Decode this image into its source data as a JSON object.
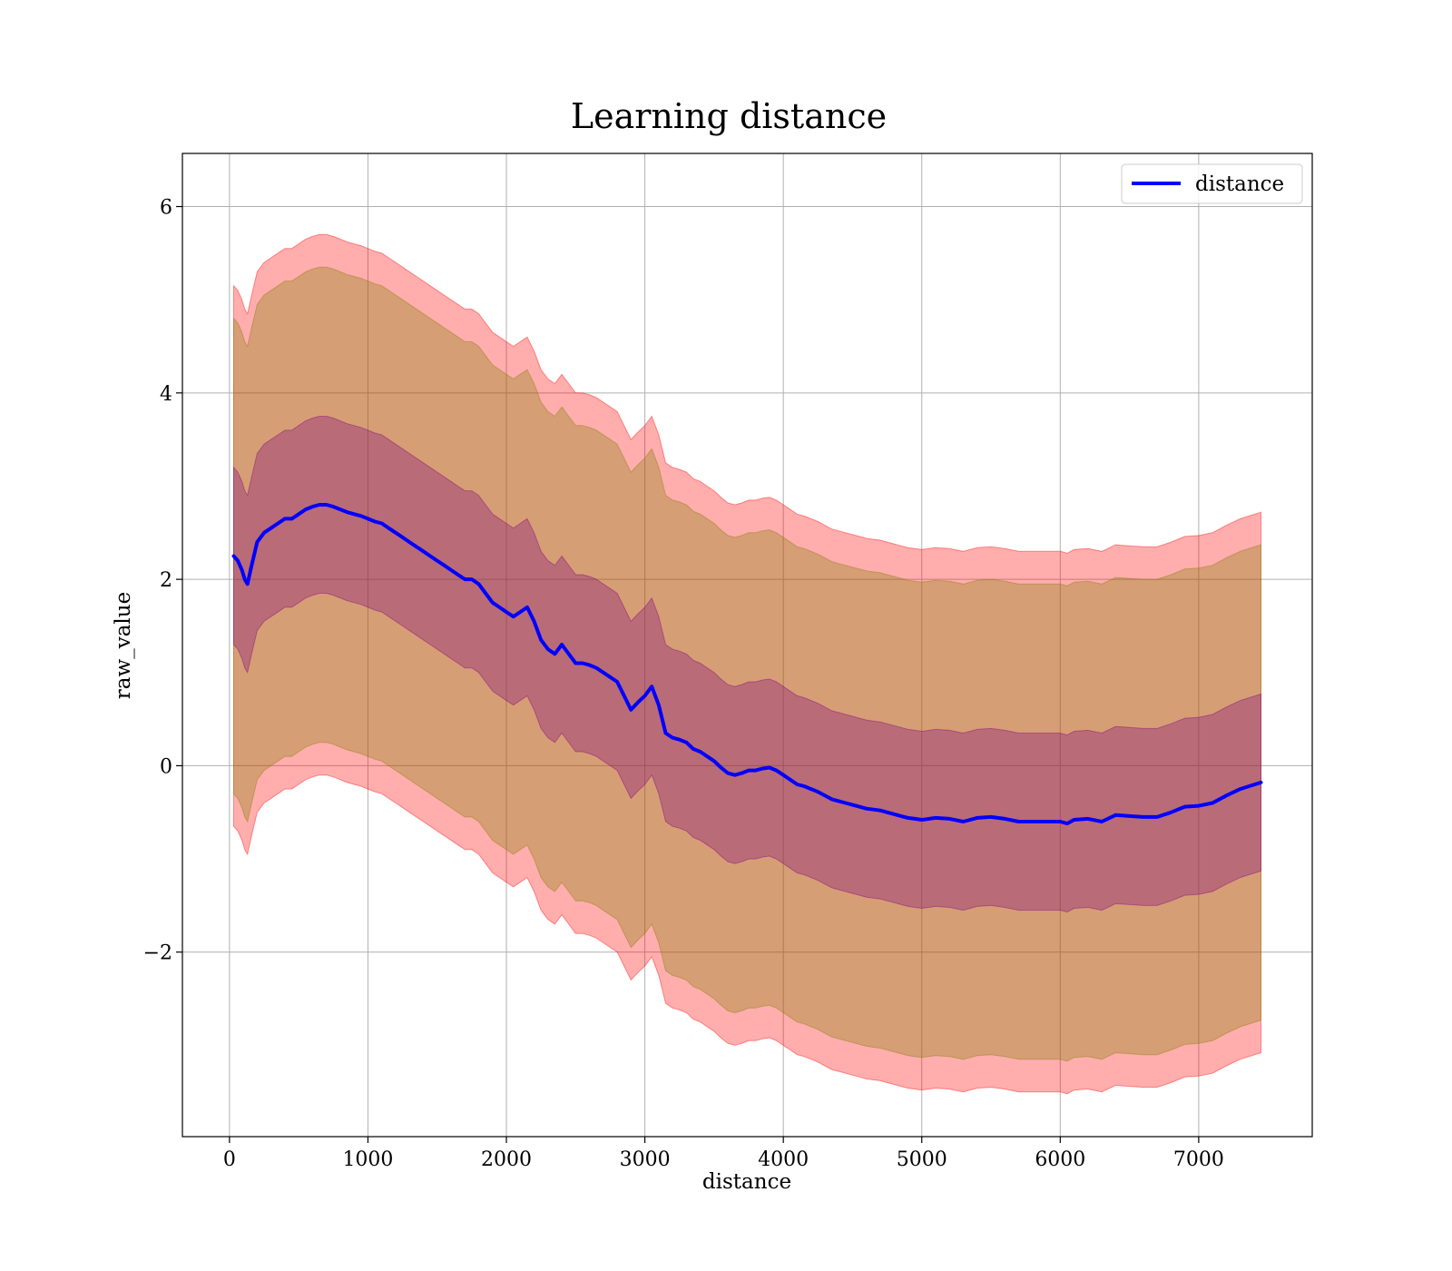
{
  "chart_data": {
    "type": "line",
    "title": "Learning distance",
    "xlabel": "distance",
    "ylabel": "raw_value",
    "xlim": [
      -340,
      7820
    ],
    "ylim": [
      -3.98,
      6.57
    ],
    "grid": true,
    "legend_position": "top-right",
    "x_ticks": [
      0,
      1000,
      2000,
      3000,
      4000,
      5000,
      6000,
      7000
    ],
    "x_tick_labels": [
      "0",
      "1000",
      "2000",
      "3000",
      "4000",
      "5000",
      "6000",
      "7000"
    ],
    "y_ticks": [
      6,
      4,
      2,
      0,
      -2
    ],
    "y_tick_labels": [
      "6",
      "4",
      "2",
      "0",
      "−2"
    ],
    "series": [
      {
        "name": "distance",
        "color": "#0000ff",
        "x": [
          30,
          60,
          90,
          110,
          130,
          160,
          200,
          250,
          300,
          350,
          400,
          450,
          500,
          550,
          600,
          650,
          700,
          750,
          800,
          850,
          900,
          950,
          1000,
          1050,
          1100,
          1150,
          1200,
          1250,
          1300,
          1350,
          1400,
          1450,
          1500,
          1550,
          1600,
          1650,
          1700,
          1750,
          1800,
          1850,
          1900,
          1950,
          2000,
          2050,
          2100,
          2150,
          2200,
          2250,
          2300,
          2350,
          2400,
          2450,
          2500,
          2550,
          2600,
          2650,
          2700,
          2750,
          2800,
          2850,
          2900,
          2950,
          3000,
          3050,
          3100,
          3150,
          3200,
          3250,
          3300,
          3350,
          3400,
          3450,
          3500,
          3550,
          3600,
          3650,
          3700,
          3750,
          3800,
          3850,
          3900,
          3950,
          4000,
          4050,
          4100,
          4150,
          4200,
          4250,
          4300,
          4350,
          4400,
          4450,
          4500,
          4550,
          4600,
          4650,
          4700,
          4750,
          4800,
          4850,
          4900,
          4950,
          5000,
          5100,
          5200,
          5300,
          5400,
          5500,
          5600,
          5700,
          5800,
          5900,
          6000,
          6050,
          6100,
          6200,
          6300,
          6400,
          6500,
          6600,
          6700,
          6800,
          6900,
          7000,
          7100,
          7200,
          7300,
          7450
        ],
        "values": [
          2.25,
          2.2,
          2.1,
          2.0,
          1.95,
          2.15,
          2.4,
          2.5,
          2.55,
          2.6,
          2.65,
          2.65,
          2.7,
          2.75,
          2.78,
          2.8,
          2.8,
          2.78,
          2.75,
          2.72,
          2.7,
          2.68,
          2.65,
          2.62,
          2.6,
          2.55,
          2.5,
          2.45,
          2.4,
          2.35,
          2.3,
          2.25,
          2.2,
          2.15,
          2.1,
          2.05,
          2.0,
          2.0,
          1.95,
          1.85,
          1.75,
          1.7,
          1.65,
          1.6,
          1.65,
          1.7,
          1.55,
          1.35,
          1.25,
          1.2,
          1.3,
          1.2,
          1.1,
          1.1,
          1.08,
          1.05,
          1.0,
          0.95,
          0.9,
          0.75,
          0.6,
          0.68,
          0.75,
          0.85,
          0.65,
          0.35,
          0.3,
          0.28,
          0.25,
          0.18,
          0.15,
          0.1,
          0.05,
          -0.02,
          -0.08,
          -0.1,
          -0.08,
          -0.05,
          -0.05,
          -0.03,
          -0.02,
          -0.05,
          -0.1,
          -0.15,
          -0.2,
          -0.22,
          -0.25,
          -0.28,
          -0.32,
          -0.36,
          -0.38,
          -0.4,
          -0.42,
          -0.44,
          -0.46,
          -0.47,
          -0.48,
          -0.5,
          -0.52,
          -0.54,
          -0.56,
          -0.57,
          -0.58,
          -0.56,
          -0.57,
          -0.6,
          -0.56,
          -0.55,
          -0.57,
          -0.6,
          -0.6,
          -0.6,
          -0.6,
          -0.62,
          -0.58,
          -0.57,
          -0.6,
          -0.53,
          -0.54,
          -0.55,
          -0.55,
          -0.5,
          -0.44,
          -0.43,
          -0.4,
          -0.32,
          -0.25,
          -0.18
        ]
      }
    ],
    "bands": [
      {
        "color": "#ff0000",
        "opacity": 0.32,
        "half_width": 2.9
      },
      {
        "color": "#808000",
        "opacity": 0.32,
        "half_width": 2.55
      },
      {
        "color": "#800080",
        "opacity": 0.32,
        "half_width": 0.95
      }
    ]
  }
}
